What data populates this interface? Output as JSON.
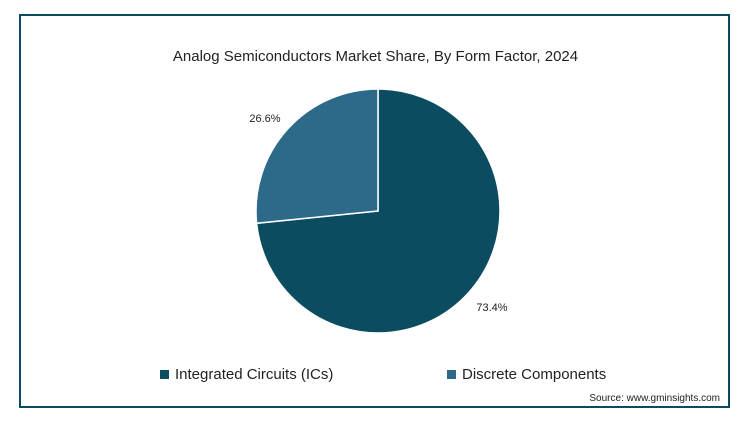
{
  "chart_data": {
    "type": "pie",
    "title": "Analog Semiconductors Market Share, By Form Factor, 2024",
    "slices": [
      {
        "name": "Integrated Circuits (ICs)",
        "value": 73.4,
        "label": "73.4%",
        "color": "#0b4c61"
      },
      {
        "name": "Discrete Components",
        "value": 26.6,
        "label": "26.6%",
        "color": "#2d6a8a"
      }
    ],
    "legend_position": "bottom"
  },
  "source": "Source: www.gminsights.com"
}
